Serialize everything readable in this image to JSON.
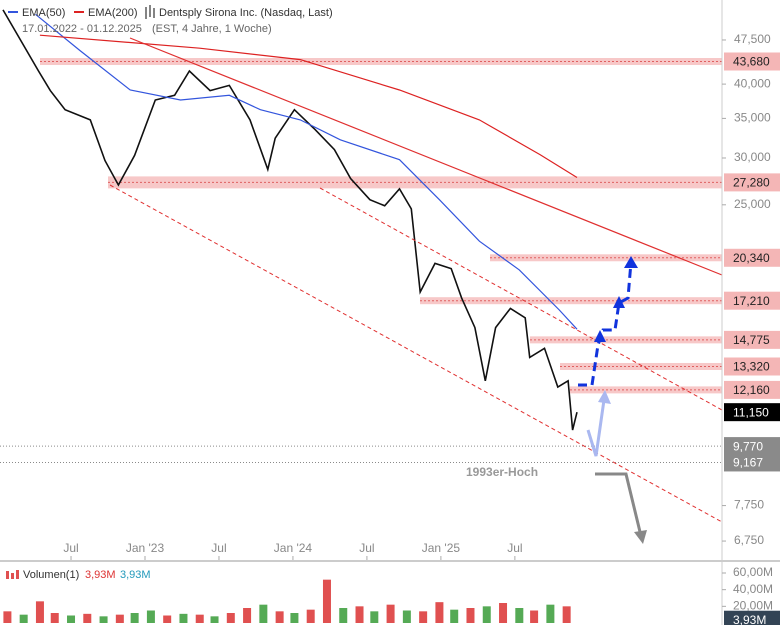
{
  "chart_data": {
    "type": "line",
    "subtitle": "17.01.2022 - 01.12.2025",
    "period": "(EST, 4 Jahre, 1 Woche)",
    "annotation": "1993er-Hoch",
    "log_scale": true,
    "xlim": [
      2022.02,
      2026.9
    ],
    "xticks": [
      {
        "value": 2022.5,
        "label": "Jul"
      },
      {
        "value": 2023,
        "label": "Jan '23"
      },
      {
        "value": 2023.5,
        "label": "Jul"
      },
      {
        "value": 2024,
        "label": "Jan '24"
      },
      {
        "value": 2024.5,
        "label": "Jul"
      },
      {
        "value": 2025,
        "label": "Jan '25"
      },
      {
        "value": 2025.5,
        "label": "Jul"
      }
    ],
    "ylim": [
      6270,
      55500
    ],
    "yticks": [
      {
        "value": 47500,
        "label": "47,500"
      },
      {
        "value": 40000,
        "label": "40,000"
      },
      {
        "value": 35000,
        "label": "35,000"
      },
      {
        "value": 30000,
        "label": "30,000"
      },
      {
        "value": 25000,
        "label": "25,000"
      },
      {
        "value": 7750,
        "label": "7,750"
      },
      {
        "value": 6750,
        "label": "6,750"
      }
    ],
    "series": [
      {
        "name": "Dentsply Sirona Inc. (Nasdaq, Last)",
        "color": "#111111",
        "x": [
          2022.04,
          2022.28,
          2022.36,
          2022.46,
          2022.63,
          2022.73,
          2022.82,
          2022.93,
          2023.07,
          2023.2,
          2023.3,
          2023.44,
          2023.57,
          2023.71,
          2023.83,
          2023.88,
          2024.01,
          2024.15,
          2024.28,
          2024.39,
          2024.52,
          2024.62,
          2024.72,
          2024.8,
          2024.86,
          2024.96,
          2025.07,
          2025.14,
          2025.23,
          2025.3,
          2025.37,
          2025.47,
          2025.57,
          2025.6,
          2025.7,
          2025.79,
          2025.86,
          2025.89,
          2025.92
        ],
        "values": [
          53400,
          42100,
          39000,
          36200,
          34800,
          29700,
          27000,
          30300,
          37600,
          38300,
          42100,
          39000,
          39800,
          34800,
          28700,
          32400,
          36200,
          33500,
          31000,
          27700,
          25500,
          24900,
          26600,
          24600,
          17800,
          19900,
          19500,
          17400,
          15500,
          12600,
          15500,
          16700,
          16100,
          13800,
          14300,
          12300,
          12600,
          10400,
          11150
        ]
      },
      {
        "name": "EMA(50)",
        "color": "#3355dd",
        "x": [
          2022.26,
          2022.56,
          2022.9,
          2023.24,
          2023.57,
          2023.78,
          2024.05,
          2024.32,
          2024.72,
          2024.99,
          2025.26,
          2025.53,
          2025.8,
          2025.92
        ],
        "values": [
          52500,
          45600,
          39100,
          37600,
          38300,
          36200,
          34800,
          32200,
          29800,
          25500,
          21700,
          19400,
          16600,
          15400
        ]
      },
      {
        "name": "EMA(200)",
        "color": "#dd2222",
        "x": [
          2022.29,
          2023.37,
          2024.05,
          2024.72,
          2025.26,
          2025.67,
          2025.92
        ],
        "values": [
          48400,
          46000,
          44000,
          39100,
          34800,
          30400,
          27800
        ]
      }
    ],
    "levels": [
      {
        "value": 43680,
        "label": "43,680"
      },
      {
        "value": 27280,
        "label": "27,280"
      },
      {
        "value": 20340,
        "label": "20,340"
      },
      {
        "value": 17210,
        "label": "17,210"
      },
      {
        "value": 14775,
        "label": "14,775"
      },
      {
        "value": 13320,
        "label": "13,320"
      },
      {
        "value": 12160,
        "label": "12,160"
      }
    ],
    "level_color": "#f4b6b6",
    "markers": [
      {
        "value": 11150,
        "label": "11,150",
        "color": "#000000"
      },
      {
        "value": 9770,
        "label": "9,770",
        "color": "#8a8a8a"
      },
      {
        "value": 9167,
        "label": "9,167",
        "color": "#8a8a8a"
      }
    ],
    "volume": {
      "name": "Volumen(1)",
      "legend": [
        {
          "value": 3.93,
          "label": "3,93M",
          "color": "#dd3333"
        },
        {
          "value": 3.93,
          "label": "3,93M",
          "color": "#2299bb"
        }
      ],
      "ylim": [
        0,
        72
      ],
      "yticks": [
        {
          "value": 60,
          "label": "60,00M"
        },
        {
          "value": 40,
          "label": "40,00M"
        },
        {
          "value": 20,
          "label": "20,00M"
        }
      ],
      "last": {
        "value": 3.93,
        "label": "3,93M"
      },
      "x": [
        2022.07,
        2022.18,
        2022.29,
        2022.39,
        2022.5,
        2022.61,
        2022.72,
        2022.83,
        2022.93,
        2023.04,
        2023.15,
        2023.26,
        2023.37,
        2023.47,
        2023.58,
        2023.69,
        2023.8,
        2023.91,
        2024.01,
        2024.12,
        2024.23,
        2024.34,
        2024.45,
        2024.55,
        2024.66,
        2024.77,
        2024.88,
        2024.99,
        2025.09,
        2025.2,
        2025.31,
        2025.42,
        2025.53,
        2025.63,
        2025.74,
        2025.85
      ],
      "values": [
        14,
        10,
        26,
        12,
        9,
        11,
        8,
        10,
        12,
        15,
        9,
        11,
        10,
        8,
        12,
        18,
        22,
        14,
        12,
        16,
        52,
        18,
        20,
        14,
        22,
        15,
        14,
        25,
        16,
        18,
        20,
        24,
        18,
        15,
        22,
        20
      ],
      "colors": [
        "#e05050",
        "#55aa55",
        "#e05050",
        "#e05050",
        "#55aa55",
        "#e05050",
        "#55aa55",
        "#e05050",
        "#55aa55",
        "#55aa55",
        "#e05050",
        "#55aa55",
        "#e05050",
        "#55aa55",
        "#e05050",
        "#e05050",
        "#55aa55",
        "#e05050",
        "#55aa55",
        "#e05050",
        "#e05050",
        "#55aa55",
        "#e05050",
        "#55aa55",
        "#e05050",
        "#55aa55",
        "#e05050",
        "#e05050",
        "#55aa55",
        "#e05050",
        "#55aa55",
        "#e05050",
        "#55aa55",
        "#e05050",
        "#55aa55",
        "#e05050"
      ]
    }
  }
}
